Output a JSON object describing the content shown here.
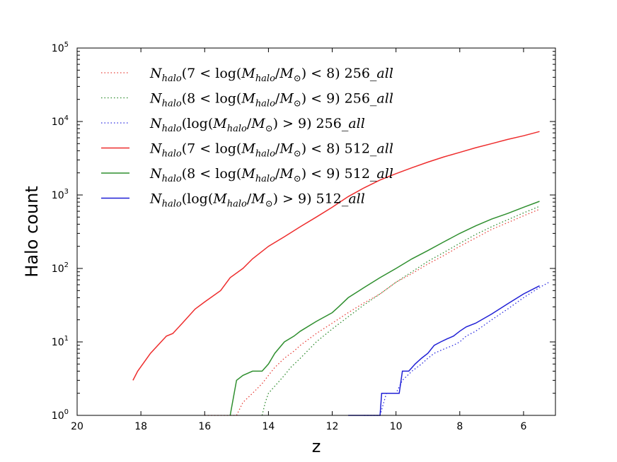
{
  "chart_data": {
    "type": "line",
    "title": "",
    "xlabel": "z",
    "ylabel": "Halo count",
    "xlim": [
      20,
      5.0
    ],
    "x_inverted": true,
    "ylim": [
      1,
      100000
    ],
    "yscale": "log",
    "grid": false,
    "legend_position": "top-left",
    "x_ticks": [
      {
        "value": 20,
        "label": "20"
      },
      {
        "value": 18,
        "label": "18"
      },
      {
        "value": 16,
        "label": "16"
      },
      {
        "value": 14,
        "label": "14"
      },
      {
        "value": 12,
        "label": "12"
      },
      {
        "value": 10,
        "label": "10"
      },
      {
        "value": 8,
        "label": "8"
      },
      {
        "value": 6,
        "label": "6"
      }
    ],
    "y_ticks": [
      {
        "value": 1,
        "base": "10",
        "exp": "0"
      },
      {
        "value": 10,
        "base": "10",
        "exp": "1"
      },
      {
        "value": 100,
        "base": "10",
        "exp": "2"
      },
      {
        "value": 1000,
        "base": "10",
        "exp": "3"
      },
      {
        "value": 10000,
        "base": "10",
        "exp": "4"
      },
      {
        "value": 100000,
        "base": "10",
        "exp": "5"
      }
    ],
    "series": [
      {
        "name": "N_halo(7 < log(M_halo/M_⊙) < 8) 256_all",
        "color": "#e8413a",
        "style": "dotted",
        "x": [
          16.0,
          15.5,
          15.0,
          14.8,
          14.5,
          14.2,
          14.0,
          13.8,
          13.5,
          13.2,
          13.0,
          12.5,
          12.0,
          11.5,
          11.0,
          10.5,
          10.0,
          9.5,
          9.0,
          8.5,
          8.0,
          7.5,
          7.0,
          6.5,
          6.0,
          5.5
        ],
        "y": [
          1,
          1,
          1,
          1.5,
          2,
          2.7,
          3.5,
          4.5,
          6,
          7.5,
          9,
          13,
          18,
          25,
          34,
          45,
          65,
          85,
          115,
          150,
          200,
          260,
          340,
          420,
          520,
          640
        ]
      },
      {
        "name": "N_halo(8 < log(M_halo/M_⊙) < 9) 256_all",
        "color": "#2e8b2e",
        "style": "dotted",
        "x": [
          14.2,
          14.1,
          14.0,
          13.8,
          13.5,
          13.3,
          13.0,
          12.5,
          12.0,
          11.5,
          11.0,
          10.5,
          10.0,
          9.5,
          9.0,
          8.5,
          8.0,
          7.5,
          7.0,
          6.5,
          6.0,
          5.5
        ],
        "y": [
          1,
          1.5,
          2,
          2.5,
          3.5,
          4.5,
          6,
          10,
          15,
          22,
          32,
          45,
          65,
          90,
          125,
          165,
          220,
          290,
          370,
          460,
          570,
          700
        ]
      },
      {
        "name": "N_halo(log(M_halo/M_⊙) > 9) 256_all",
        "color": "#2a2ae0",
        "style": "dotted",
        "x": [
          11.0,
          10.5,
          10.3,
          10.0,
          9.8,
          9.5,
          9.2,
          9.0,
          8.8,
          8.5,
          8.2,
          8.0,
          7.8,
          7.5,
          7.0,
          6.5,
          6.0,
          5.5,
          5.2
        ],
        "y": [
          1,
          1,
          2,
          2,
          3,
          4,
          5,
          6,
          7,
          8,
          9,
          10,
          12,
          14,
          20,
          28,
          40,
          55,
          65
        ]
      },
      {
        "name": "N_halo(7 < log(M_halo/M_⊙) < 8) 512_all",
        "color": "#ee2d2d",
        "style": "solid",
        "x": [
          18.25,
          18.1,
          17.7,
          17.2,
          17.0,
          16.7,
          16.3,
          16.0,
          15.5,
          15.2,
          14.8,
          14.5,
          14.0,
          13.5,
          13.0,
          12.5,
          12.0,
          11.5,
          11.0,
          10.5,
          10.0,
          9.5,
          9.0,
          8.5,
          8.0,
          7.5,
          7.0,
          6.5,
          6.0,
          5.5
        ],
        "y": [
          3,
          4,
          7,
          12,
          13,
          18,
          28,
          35,
          50,
          75,
          100,
          135,
          200,
          270,
          370,
          500,
          680,
          950,
          1250,
          1600,
          1950,
          2350,
          2800,
          3300,
          3800,
          4400,
          5000,
          5700,
          6400,
          7300
        ]
      },
      {
        "name": "N_halo(8 < log(M_halo/M_⊙) < 9) 512_all",
        "color": "#2f8f2f",
        "style": "solid",
        "x": [
          15.2,
          15.0,
          14.8,
          14.5,
          14.2,
          14.0,
          13.8,
          13.5,
          13.2,
          13.0,
          12.5,
          12.0,
          11.8,
          11.5,
          11.0,
          10.5,
          10.0,
          9.5,
          9.0,
          8.5,
          8.0,
          7.5,
          7.0,
          6.5,
          6.0,
          5.5
        ],
        "y": [
          1,
          3,
          3.5,
          4,
          4,
          5,
          7,
          10,
          12,
          14,
          19,
          25,
          30,
          40,
          55,
          75,
          100,
          135,
          175,
          230,
          300,
          380,
          470,
          560,
          680,
          820
        ]
      },
      {
        "name": "N_halo(log(M_halo/M_⊙) > 9) 512_all",
        "color": "#1f1fd6",
        "style": "solid",
        "x": [
          11.5,
          10.5,
          10.45,
          9.9,
          9.8,
          9.6,
          9.4,
          9.2,
          9.0,
          8.8,
          8.6,
          8.4,
          8.2,
          8.0,
          7.8,
          7.5,
          7.0,
          6.5,
          6.0,
          5.5
        ],
        "y": [
          1,
          1,
          2,
          2,
          4,
          4,
          5,
          6,
          7,
          9,
          10,
          11,
          12,
          14,
          16,
          18,
          24,
          33,
          45,
          58
        ]
      }
    ]
  },
  "legend": [
    {
      "num": "7",
      "rel1": "<",
      "rel2": "<",
      "lim": "8",
      "run": "256",
      "lower": true
    },
    {
      "num": "8",
      "rel1": "<",
      "rel2": "<",
      "lim": "9",
      "run": "256",
      "lower": true
    },
    {
      "num": "",
      "rel1": "",
      "rel2": ">",
      "lim": "9",
      "run": "256",
      "lower": false
    },
    {
      "num": "7",
      "rel1": "<",
      "rel2": "<",
      "lim": "8",
      "run": "512",
      "lower": true
    },
    {
      "num": "8",
      "rel1": "<",
      "rel2": "<",
      "lim": "9",
      "run": "512",
      "lower": true
    },
    {
      "num": "",
      "rel1": "",
      "rel2": ">",
      "lim": "9",
      "run": "512",
      "lower": false
    }
  ]
}
